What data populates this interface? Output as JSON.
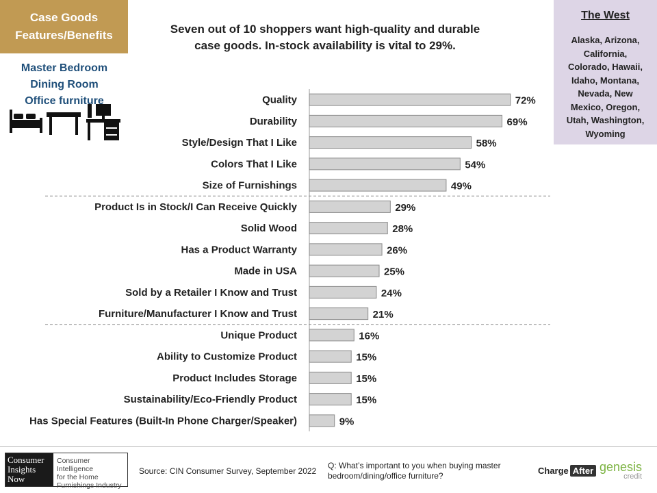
{
  "topic": {
    "line1": "Case Goods",
    "line2": "Features/Benefits"
  },
  "rooms": [
    "Master Bedroom",
    "Dining Room",
    "Office furniture"
  ],
  "icons": [
    "bed-icon",
    "table-icon",
    "desk-icon"
  ],
  "headline": {
    "line1": "Seven out of 10 shoppers want high-quality  and durable",
    "line2": "case goods.  In-stock availability is vital to 29%."
  },
  "region": {
    "title": "The West",
    "states": [
      "Alaska, Arizona,",
      "California,",
      "Colorado, Hawaii,",
      "Idaho, Montana,",
      "Nevada, New",
      "Mexico, Oregon,",
      "Utah, Washington,",
      "Wyoming"
    ]
  },
  "chart_data": {
    "type": "bar",
    "orientation": "horizontal",
    "categories": [
      "Quality",
      "Durability",
      "Style/Design That I Like",
      "Colors That I Like",
      "Size of Furnishings",
      "Product Is in Stock/I Can Receive Quickly",
      "Solid Wood",
      "Has a Product Warranty",
      "Made in USA",
      "Sold by a Retailer I Know and Trust",
      "Furniture/Manufacturer I Know and Trust",
      "Unique Product",
      "Ability to Customize Product",
      "Product Includes Storage",
      "Sustainability/Eco-Friendly Product",
      "Has Special Features (Built-In Phone Charger/Speaker)"
    ],
    "values": [
      72,
      69,
      58,
      54,
      49,
      29,
      28,
      26,
      25,
      24,
      21,
      16,
      15,
      15,
      15,
      9
    ],
    "labels": [
      "72%",
      "69%",
      "58%",
      "54%",
      "49%",
      "29%",
      "28%",
      "26%",
      "25%",
      "24%",
      "21%",
      "16%",
      "15%",
      "15%",
      "15%",
      "9%"
    ],
    "group_dividers_after": [
      4,
      10
    ],
    "xlim": [
      0,
      100
    ],
    "colors": {
      "bar": "#d3d3d3",
      "bar_border": "#8a8a8a"
    }
  },
  "footer": {
    "cin_logo": {
      "left": [
        "Consumer",
        "Insights",
        "Now"
      ],
      "right": [
        "Consumer Intelligence",
        "for the Home",
        "Furnishings Industry"
      ]
    },
    "source": "Source: CIN Consumer Survey, September  2022",
    "question": "Q: What’s important to you when buying master bedroom/dining/office furniture?",
    "chargeafter": {
      "part1": "Charge",
      "part2": "After"
    },
    "genesis": {
      "line1": "genesis",
      "line2": "credit"
    }
  }
}
